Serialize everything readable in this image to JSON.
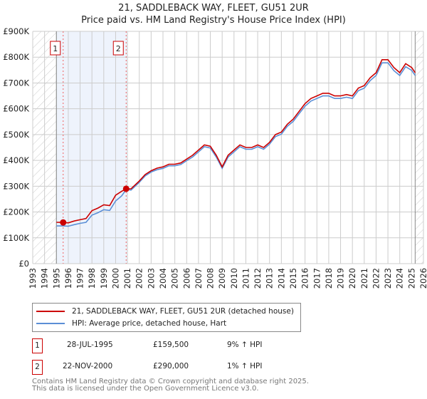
{
  "chart_data": {
    "type": "line",
    "title": "21, SADDLEBACK WAY, FLEET, GU51 2UR",
    "subtitle": "Price paid vs. HM Land Registry's House Price Index (HPI)",
    "xlim": [
      1993,
      2026
    ],
    "ylim": [
      0,
      900000
    ],
    "y_ticks": [
      {
        "v": 0,
        "label": "£0"
      },
      {
        "v": 100000,
        "label": "£100K"
      },
      {
        "v": 200000,
        "label": "£200K"
      },
      {
        "v": 300000,
        "label": "£300K"
      },
      {
        "v": 400000,
        "label": "£400K"
      },
      {
        "v": 500000,
        "label": "£500K"
      },
      {
        "v": 600000,
        "label": "£600K"
      },
      {
        "v": 700000,
        "label": "£700K"
      },
      {
        "v": 800000,
        "label": "£800K"
      },
      {
        "v": 900000,
        "label": "£900K"
      }
    ],
    "x_ticks": [
      "1993",
      "1994",
      "1995",
      "1996",
      "1997",
      "1998",
      "1999",
      "2000",
      "2001",
      "2002",
      "2003",
      "2004",
      "2005",
      "2006",
      "2007",
      "2008",
      "2009",
      "2010",
      "2011",
      "2012",
      "2013",
      "2014",
      "2015",
      "2016",
      "2017",
      "2018",
      "2019",
      "2020",
      "2021",
      "2022",
      "2023",
      "2024",
      "2025",
      "2026"
    ],
    "grid": true,
    "series": [
      {
        "name": "21, SADDLEBACK WAY, FLEET, GU51 2UR (detached house)",
        "color": "#cc0000",
        "x": [
          1995.0,
          1995.6,
          1996,
          1996.5,
          1997,
          1997.5,
          1998,
          1998.5,
          1999,
          1999.5,
          2000,
          2000.5,
          2000.9,
          2001.3,
          2002,
          2002.5,
          2003,
          2003.5,
          2004,
          2004.5,
          2005,
          2005.5,
          2006,
          2006.5,
          2007,
          2007.5,
          2008,
          2008.5,
          2009,
          2009.5,
          2010,
          2010.5,
          2011,
          2011.5,
          2012,
          2012.5,
          2013,
          2013.5,
          2014,
          2014.5,
          2015,
          2015.5,
          2016,
          2016.5,
          2017,
          2017.5,
          2018,
          2018.5,
          2019,
          2019.5,
          2020,
          2020.5,
          2021,
          2021.5,
          2022,
          2022.5,
          2023,
          2023.5,
          2024,
          2024.5,
          2025,
          2025.3
        ],
        "y": [
          160000,
          159500,
          158000,
          165000,
          170000,
          175000,
          205000,
          215000,
          228000,
          225000,
          265000,
          280000,
          290000,
          290000,
          320000,
          345000,
          360000,
          370000,
          375000,
          385000,
          385000,
          390000,
          405000,
          420000,
          440000,
          460000,
          455000,
          420000,
          375000,
          420000,
          440000,
          460000,
          450000,
          450000,
          460000,
          450000,
          470000,
          500000,
          510000,
          540000,
          560000,
          590000,
          620000,
          640000,
          650000,
          660000,
          660000,
          650000,
          650000,
          655000,
          650000,
          680000,
          690000,
          720000,
          740000,
          790000,
          790000,
          760000,
          740000,
          775000,
          760000,
          740000
        ]
      },
      {
        "name": "HPI: Average price, detached house, Hart",
        "color": "#5b8fd6",
        "x": [
          1995.0,
          1995.6,
          1996,
          1996.5,
          1997,
          1997.5,
          1998,
          1998.5,
          1999,
          1999.5,
          2000,
          2000.5,
          2000.9,
          2001.3,
          2002,
          2002.5,
          2003,
          2003.5,
          2004,
          2004.5,
          2005,
          2005.5,
          2006,
          2006.5,
          2007,
          2007.5,
          2008,
          2008.5,
          2009,
          2009.5,
          2010,
          2010.5,
          2011,
          2011.5,
          2012,
          2012.5,
          2013,
          2013.5,
          2014,
          2014.5,
          2015,
          2015.5,
          2016,
          2016.5,
          2017,
          2017.5,
          2018,
          2018.5,
          2019,
          2019.5,
          2020,
          2020.5,
          2021,
          2021.5,
          2022,
          2022.5,
          2023,
          2023.5,
          2024,
          2024.5,
          2025,
          2025.3
        ],
        "y": [
          146000,
          146000,
          145000,
          151000,
          156000,
          160000,
          188000,
          197000,
          209000,
          206000,
          243000,
          262000,
          287000,
          285000,
          315000,
          340000,
          355000,
          364000,
          369000,
          379000,
          379000,
          384000,
          399000,
          413000,
          433000,
          453000,
          448000,
          413000,
          369000,
          413000,
          433000,
          453000,
          443000,
          443000,
          453000,
          443000,
          463000,
          492000,
          502000,
          532000,
          551000,
          581000,
          610000,
          630000,
          640000,
          650000,
          650000,
          640000,
          640000,
          645000,
          640000,
          670000,
          680000,
          709000,
          729000,
          778000,
          778000,
          748000,
          729000,
          763000,
          749000,
          729000
        ]
      }
    ],
    "sales": [
      {
        "n": "1",
        "x": 1995.57,
        "y": 159500
      },
      {
        "n": "2",
        "x": 2000.89,
        "y": 290000
      }
    ],
    "hatch_before": 1995.0,
    "hatch_after": 2025.3
  },
  "legend": {
    "red": "21, SADDLEBACK WAY, FLEET, GU51 2UR (detached house)",
    "blue": "HPI: Average price, detached house, Hart"
  },
  "transactions": [
    {
      "n": "1",
      "date": "28-JUL-1995",
      "price": "£159,500",
      "hpi": "9% ↑ HPI"
    },
    {
      "n": "2",
      "date": "22-NOV-2000",
      "price": "£290,000",
      "hpi": "1% ↑ HPI"
    }
  ],
  "footer": {
    "line1": "Contains HM Land Registry data © Crown copyright and database right 2025.",
    "line2": "This data is licensed under the Open Government Licence v3.0."
  }
}
